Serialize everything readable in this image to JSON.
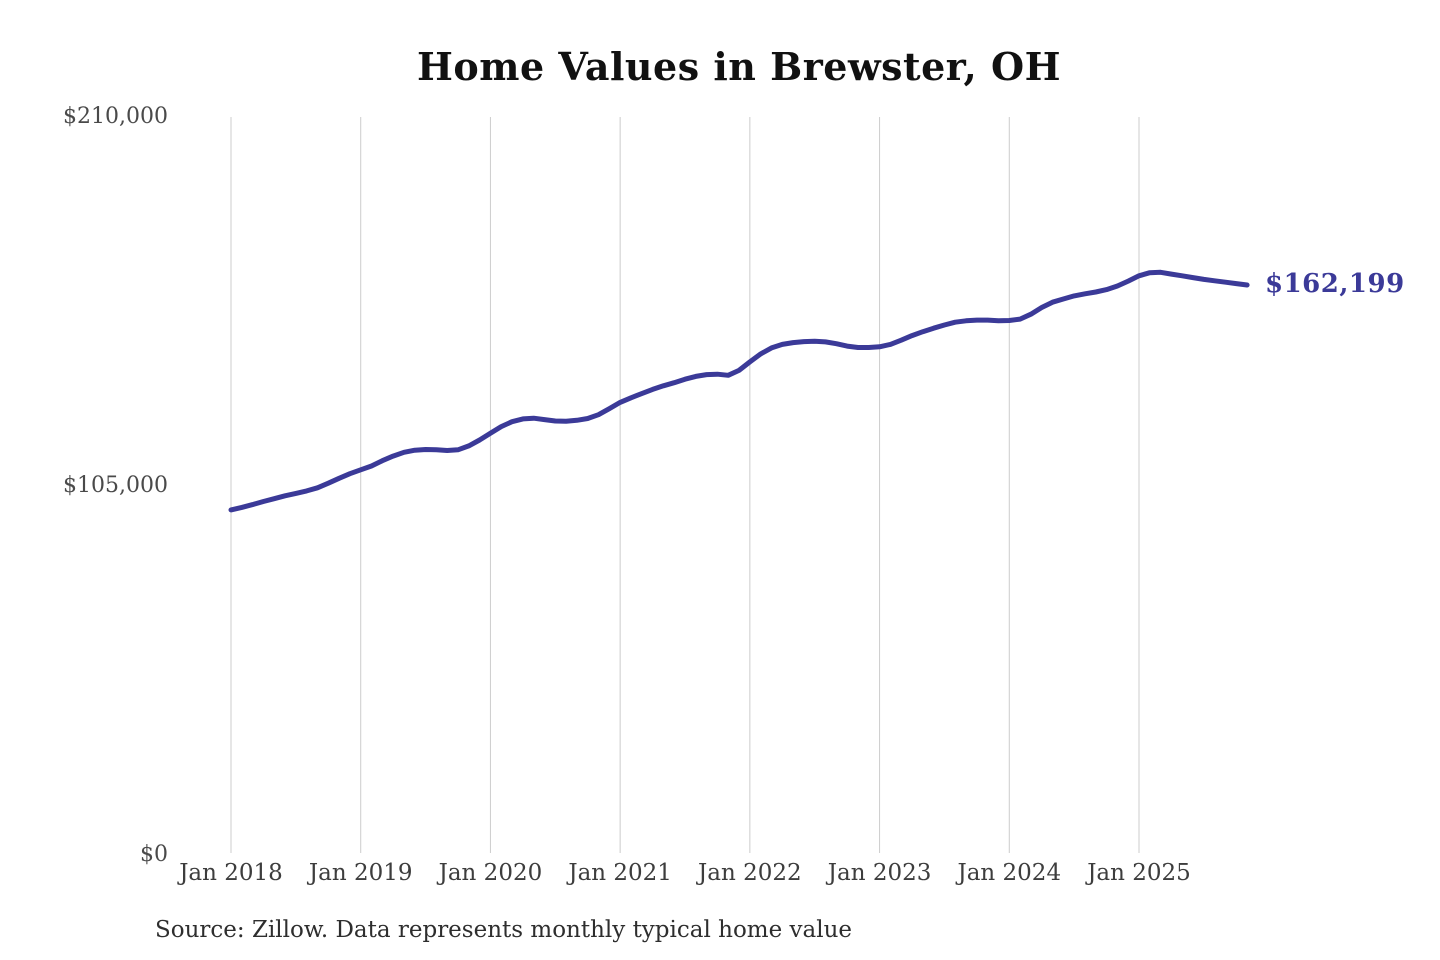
{
  "page": {
    "background_color": "#ffffff"
  },
  "chart_data": {
    "type": "line",
    "title": "Home Values in Brewster, OH",
    "x_tick_labels": [
      "Jan 2018",
      "Jan 2019",
      "Jan 2020",
      "Jan 2021",
      "Jan 2022",
      "Jan 2023",
      "Jan 2024",
      "Jan 2025"
    ],
    "y_ticks": [
      {
        "label": "$210,000",
        "value": 210000
      },
      {
        "label": "$105,000",
        "value": 105000
      },
      {
        "label": "$0",
        "value": 0
      }
    ],
    "ylim": [
      0,
      210000
    ],
    "grid": "vertical-only",
    "legend": "none",
    "frequency": "monthly",
    "start_month": "Jan 2018",
    "end_month": "Nov 2025",
    "line_color": "#3b3a98",
    "gridline_color": "#cccccc",
    "series": [
      {
        "name": "Typical home value",
        "values": [
          98200,
          98900,
          99700,
          100600,
          101400,
          102200,
          102900,
          103600,
          104500,
          105800,
          107200,
          108500,
          109600,
          110700,
          112200,
          113500,
          114600,
          115200,
          115400,
          115300,
          115100,
          115300,
          116400,
          118100,
          120000,
          121900,
          123300,
          124100,
          124300,
          123900,
          123500,
          123400,
          123700,
          124200,
          125300,
          127000,
          128800,
          130100,
          131300,
          132500,
          133500,
          134400,
          135400,
          136200,
          136700,
          136800,
          136500,
          137900,
          140300,
          142600,
          144300,
          145300,
          145800,
          146100,
          146200,
          146000,
          145500,
          144800,
          144400,
          144400,
          144600,
          145300,
          146500,
          147800,
          148900,
          149900,
          150800,
          151600,
          152000,
          152200,
          152200,
          152000,
          152100,
          152500,
          153900,
          155800,
          157300,
          158200,
          159100,
          159700,
          160200,
          160900,
          161900,
          163300,
          164800,
          165700,
          165800,
          165300,
          164800,
          164300,
          163800,
          163400,
          163000,
          162600,
          162199
        ]
      }
    ],
    "end_label": "$162,199",
    "final_value": 162199
  },
  "footer": {
    "source": "Source: Zillow. Data represents monthly typical home value"
  }
}
